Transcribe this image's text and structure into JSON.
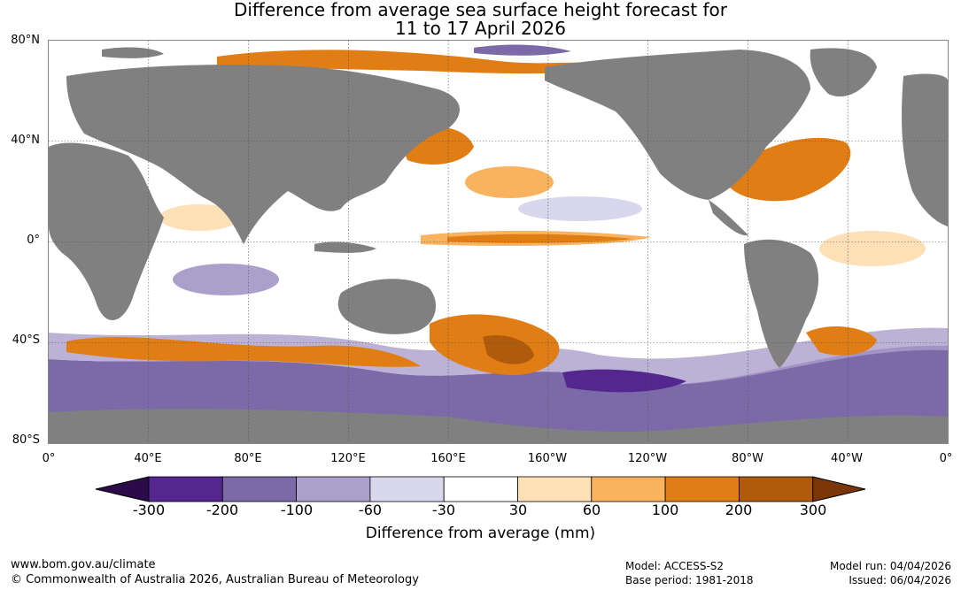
{
  "title": {
    "line1": "Difference from average sea surface height forecast for",
    "line2": "11 to 17 April 2026"
  },
  "map": {
    "lat_labels": [
      "80°N",
      "40°N",
      "0°",
      "40°S",
      "80°S"
    ],
    "lon_labels": [
      "0°",
      "40°E",
      "80°E",
      "120°E",
      "160°E",
      "160°W",
      "120°W",
      "80°W",
      "40°W",
      "0°"
    ]
  },
  "colorbar": {
    "title": "Difference from average (mm)",
    "ticks": [
      "-300",
      "-200",
      "-100",
      "-60",
      "-30",
      "30",
      "60",
      "100",
      "200",
      "300"
    ],
    "colors": {
      "below_min": "#2d0a4a",
      "c1": "#54278f",
      "c2": "#7c6aa8",
      "c3": "#ab9fcc",
      "c4": "#d8d7ec",
      "c5": "#ffffff",
      "c6": "#fde0b5",
      "c7": "#f9b35e",
      "c8": "#e07d14",
      "c9": "#b05a0c",
      "above_max": "#7a3606"
    }
  },
  "colors": {
    "land": "#808080",
    "grid": "#555555"
  },
  "footer": {
    "website": "www.bom.gov.au/climate",
    "copyright": "© Commonwealth of Australia 2026, Australian Bureau of Meteorology",
    "model": "Model: ACCESS-S2",
    "base_period": "Base period: 1981-2018",
    "model_run": "Model run: 04/04/2026",
    "issued": "Issued: 06/04/2026"
  }
}
